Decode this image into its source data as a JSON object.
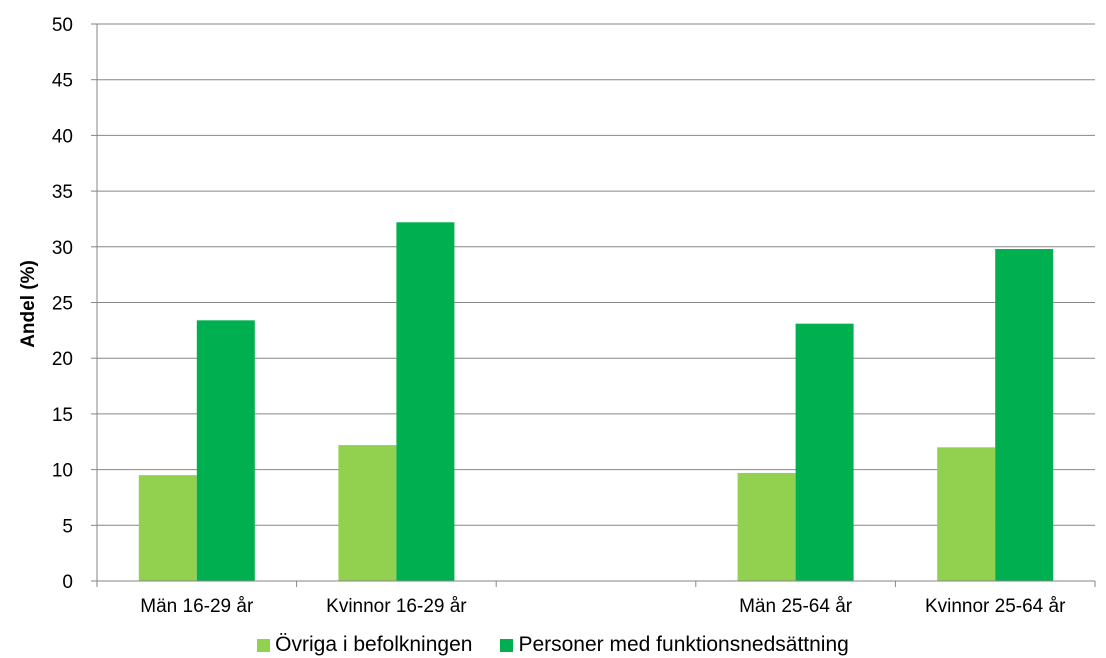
{
  "chart_data": {
    "type": "bar",
    "categories": [
      "Män 16-29 år",
      "Kvinnor 16-29 år",
      "",
      "Män 25-64 år",
      "Kvinnor 25-64 år"
    ],
    "series": [
      {
        "name": "Övriga i befolkningen",
        "color": "#92D050",
        "values": [
          9.5,
          12.2,
          null,
          9.7,
          12.0
        ]
      },
      {
        "name": "Personer med funktionsnedsättning",
        "color": "#00B050",
        "values": [
          23.4,
          32.2,
          null,
          23.1,
          29.8
        ]
      }
    ],
    "title": "",
    "xlabel": "",
    "ylabel": "Andel (%)",
    "ylim": [
      0,
      50
    ],
    "yticks": [
      0,
      5,
      10,
      15,
      20,
      25,
      30,
      35,
      40,
      45,
      50
    ],
    "grid": true,
    "legend_position": "bottom"
  }
}
